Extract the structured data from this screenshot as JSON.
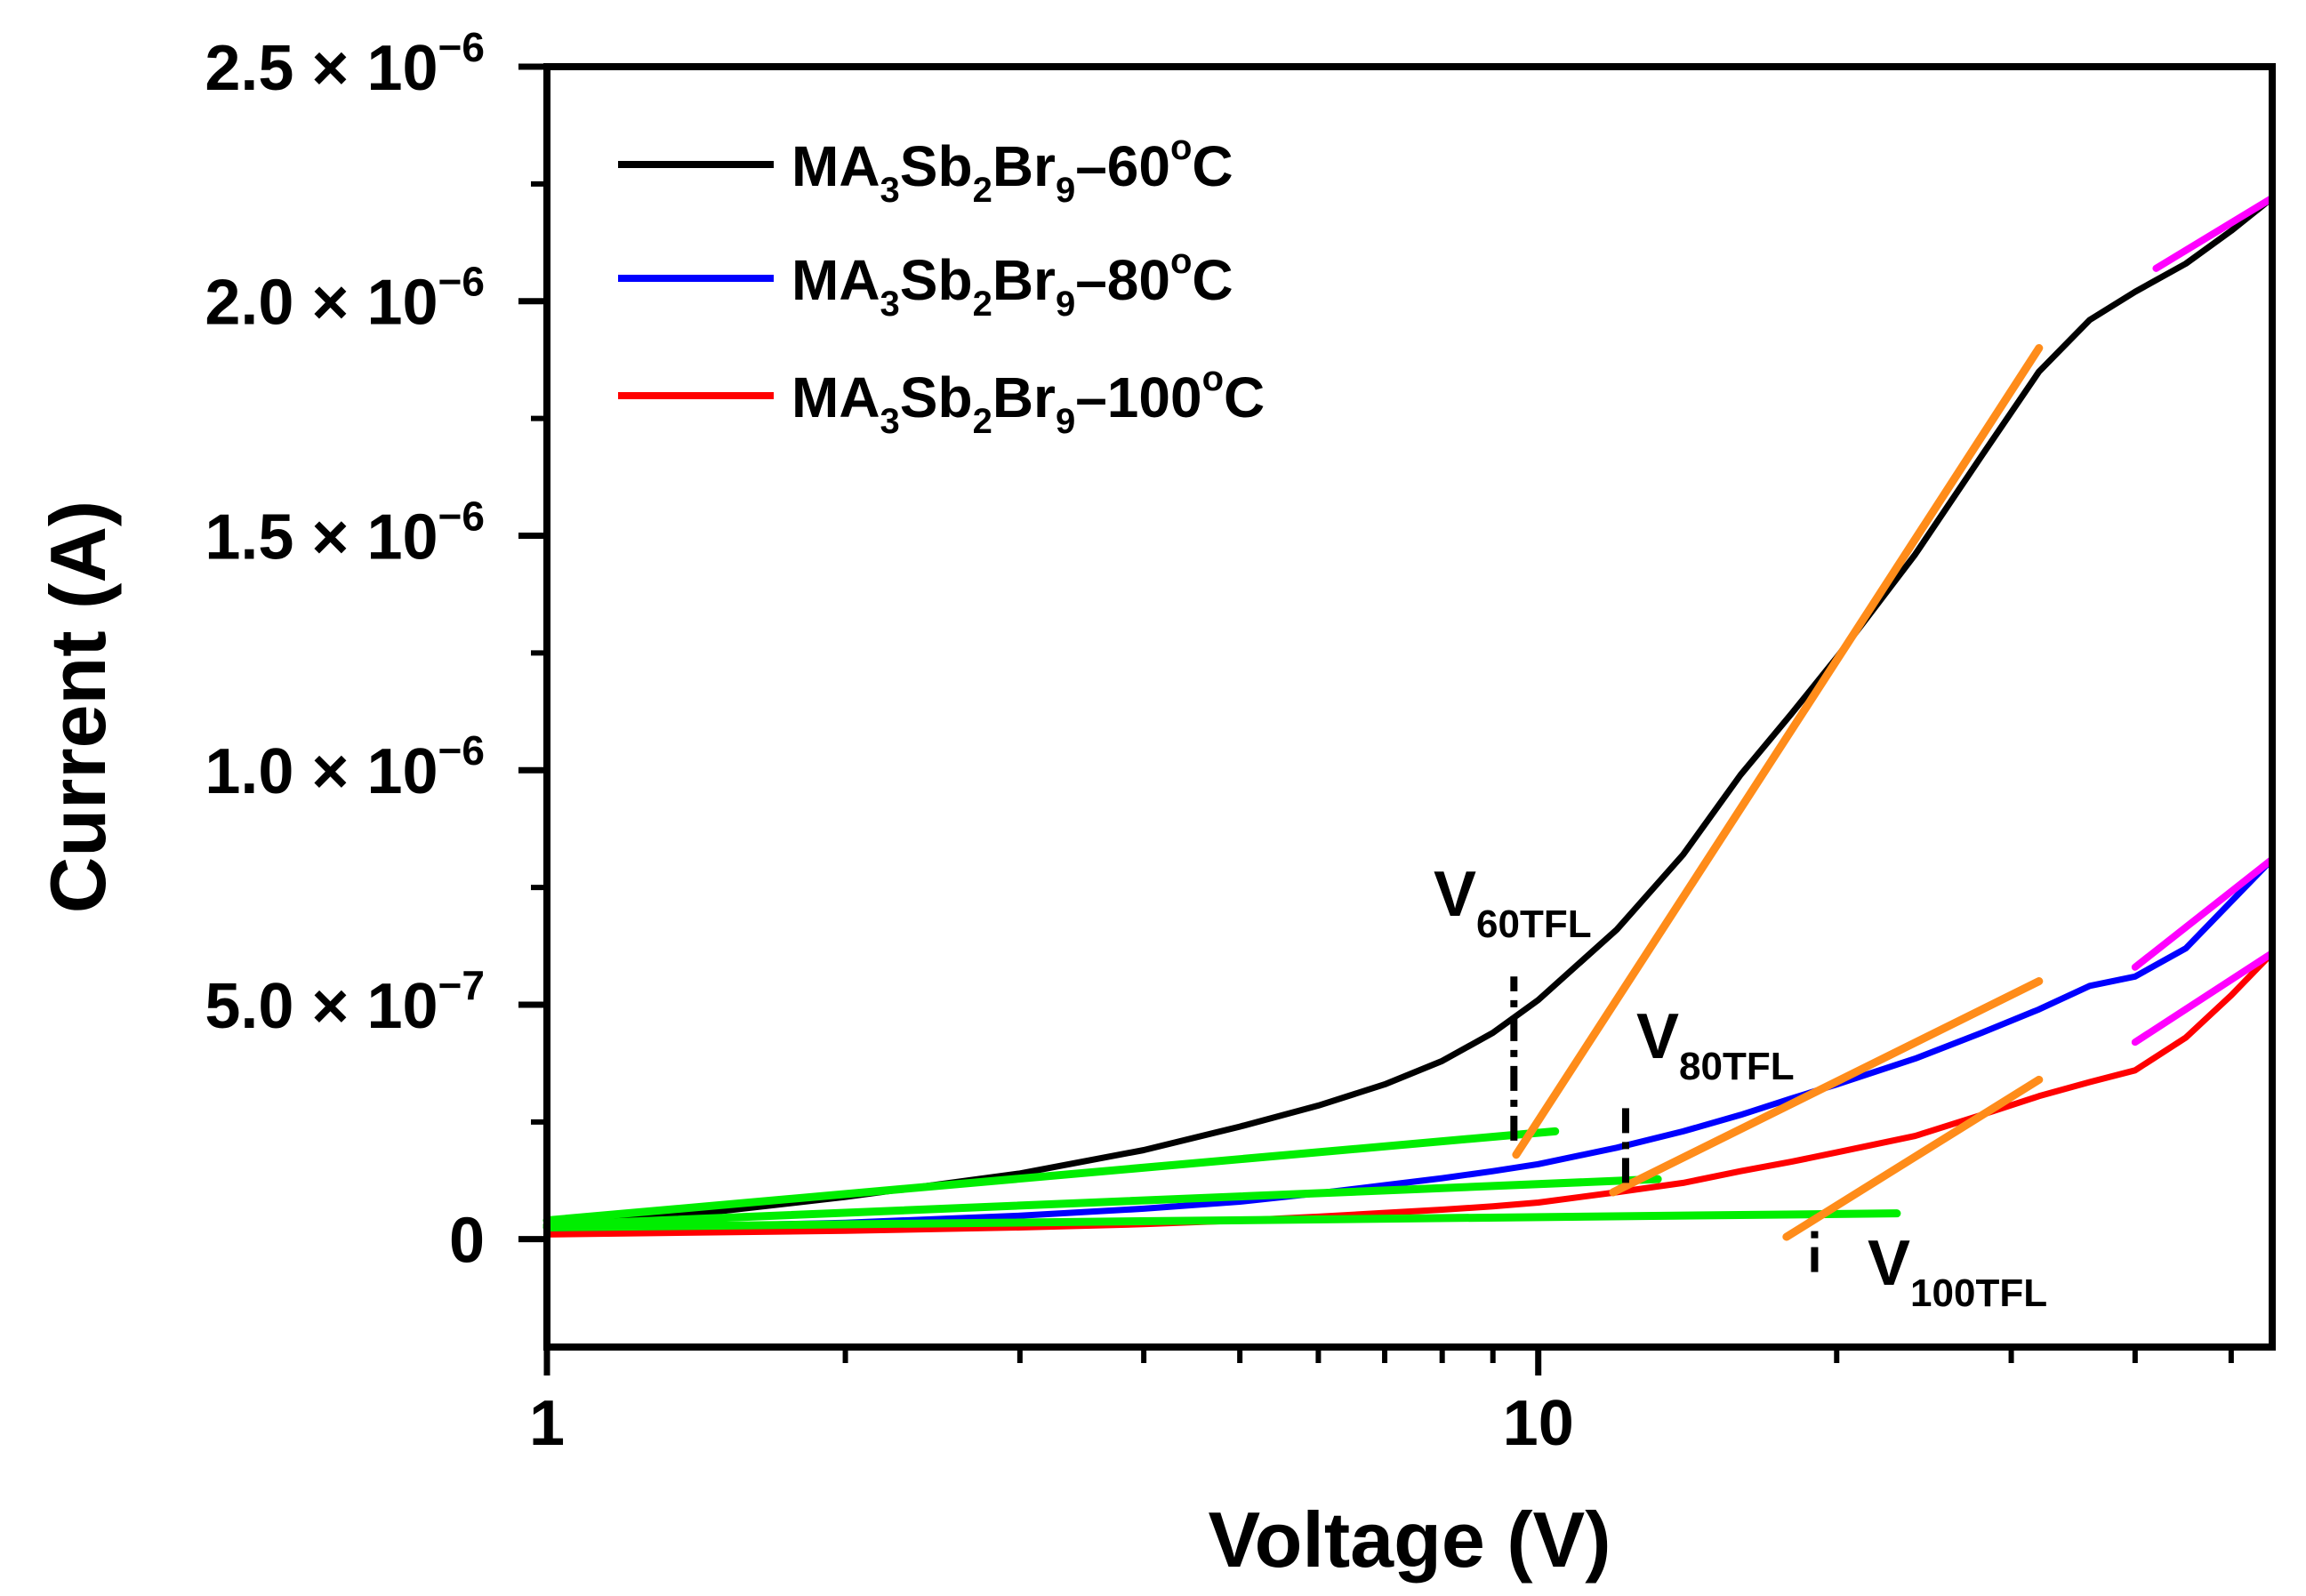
{
  "chart_data": {
    "type": "line",
    "xscale": "log",
    "xlabel": "Voltage (V)",
    "ylabel": "Current (A)",
    "xlim": [
      1,
      55
    ],
    "ylim": [
      -2.3e-07,
      2.5e-06
    ],
    "x_tick_labels": [
      {
        "value": 1,
        "text": "1"
      },
      {
        "value": 10,
        "text": "10"
      }
    ],
    "y_tick_labels": [
      {
        "value": 0,
        "mantissa": "0",
        "exp": ""
      },
      {
        "value": 5e-07,
        "mantissa": "5.0",
        "exp": "−7"
      },
      {
        "value": 1e-06,
        "mantissa": "1.0",
        "exp": "−6"
      },
      {
        "value": 1.5e-06,
        "mantissa": "1.5",
        "exp": "−6"
      },
      {
        "value": 2e-06,
        "mantissa": "2.0",
        "exp": "−6"
      },
      {
        "value": 2.5e-06,
        "mantissa": "2.5",
        "exp": "−6"
      }
    ],
    "series": [
      {
        "name": "MA3Sb2Br9–60oC",
        "label": {
          "base": "MA",
          "s1": "3",
          "m1": "Sb",
          "s2": "2",
          "m2": "Br",
          "s3": "9",
          "tail": "–60",
          "deg": "o",
          "unit": "C"
        },
        "color": "#000000",
        "x": [
          1,
          1.5,
          2,
          3,
          4,
          5,
          6,
          7,
          8,
          9,
          10,
          12,
          14,
          16,
          18,
          20,
          24,
          28,
          32,
          36,
          40,
          45,
          50,
          55
        ],
        "y": [
          3e-08,
          6e-08,
          9e-08,
          1.4e-07,
          1.9e-07,
          2.4e-07,
          2.85e-07,
          3.3e-07,
          3.8e-07,
          4.4e-07,
          5.1e-07,
          6.6e-07,
          8.2e-07,
          9.9e-07,
          1.12e-06,
          1.24e-06,
          1.46e-06,
          1.67e-06,
          1.85e-06,
          1.96e-06,
          2.02e-06,
          2.08e-06,
          2.15e-06,
          2.22e-06
        ]
      },
      {
        "name": "MA3Sb2Br9–80oC",
        "label": {
          "base": "MA",
          "s1": "3",
          "m1": "Sb",
          "s2": "2",
          "m2": "Br",
          "s3": "9",
          "tail": "–80",
          "deg": "o",
          "unit": "C"
        },
        "color": "#0000ff",
        "x": [
          1,
          2,
          3,
          4,
          5,
          6,
          7,
          8,
          9,
          10,
          12,
          14,
          16,
          18,
          20,
          24,
          28,
          32,
          36,
          40,
          45,
          50,
          55
        ],
        "y": [
          2e-08,
          3.5e-08,
          5e-08,
          6.5e-08,
          8e-08,
          9.8e-08,
          1.15e-07,
          1.3e-07,
          1.45e-07,
          1.6e-07,
          1.95e-07,
          2.3e-07,
          2.65e-07,
          3e-07,
          3.3e-07,
          3.85e-07,
          4.4e-07,
          4.9e-07,
          5.4e-07,
          5.6e-07,
          6.2e-07,
          7.2e-07,
          8.1e-07
        ]
      },
      {
        "name": "MA3Sb2Br9–100oC",
        "label": {
          "base": "MA",
          "s1": "3",
          "m1": "Sb",
          "s2": "2",
          "m2": "Br",
          "s3": "9",
          "tail": "–100",
          "deg": "o",
          "unit": "C"
        },
        "color": "#ff0000",
        "x": [
          1,
          2,
          3,
          4,
          5,
          6,
          7,
          8,
          9,
          10,
          12,
          14,
          16,
          18,
          20,
          24,
          28,
          32,
          36,
          40,
          45,
          50,
          55
        ],
        "y": [
          1e-08,
          1.8e-08,
          2.5e-08,
          3.2e-08,
          4e-08,
          4.8e-08,
          5.6e-08,
          6.3e-08,
          7e-08,
          7.8e-08,
          1e-07,
          1.2e-07,
          1.45e-07,
          1.65e-07,
          1.85e-07,
          2.2e-07,
          2.65e-07,
          3.05e-07,
          3.35e-07,
          3.6e-07,
          4.3e-07,
          5.2e-07,
          6.1e-07
        ]
      }
    ],
    "ohmic_fits": [
      {
        "color": "#00ee00",
        "x": [
          1,
          10.4
        ],
        "y": [
          4e-08,
          2.3e-07
        ]
      },
      {
        "color": "#00ee00",
        "x": [
          1,
          13.2
        ],
        "y": [
          3e-08,
          1.28e-07
        ]
      },
      {
        "color": "#00ee00",
        "x": [
          1,
          23
        ],
        "y": [
          2.5e-08,
          5.5e-08
        ]
      }
    ],
    "tfl_fits": [
      {
        "color": "#ff8c1a",
        "x": [
          9.5,
          32
        ],
        "y": [
          1.8e-07,
          1.9e-06
        ]
      },
      {
        "color": "#ff8c1a",
        "x": [
          11.9,
          32
        ],
        "y": [
          1e-07,
          5.5e-07
        ]
      },
      {
        "color": "#ff8c1a",
        "x": [
          17.8,
          32
        ],
        "y": [
          5e-09,
          3.4e-07
        ]
      }
    ],
    "high_field": [
      {
        "color": "#ff00ff",
        "x": [
          42,
          55
        ],
        "y": [
          2.07e-06,
          2.22e-06
        ]
      },
      {
        "color": "#ff00ff",
        "x": [
          40,
          55
        ],
        "y": [
          5.8e-07,
          8.1e-07
        ]
      },
      {
        "color": "#ff00ff",
        "x": [
          40,
          55
        ],
        "y": [
          4.2e-07,
          6.1e-07
        ]
      }
    ],
    "annotations": [
      {
        "main": "V",
        "sub": "60TFL",
        "x": 9.45,
        "line_y": [
          2.1e-07,
          5.6e-07
        ]
      },
      {
        "main": "V",
        "sub": "80TFL",
        "x": 12.25,
        "line_y": [
          1.2e-07,
          2.9e-07
        ]
      },
      {
        "main": "V",
        "sub": "100TFL",
        "x": 19.0,
        "line_y": [
          -7e-08,
          3e-08
        ]
      }
    ]
  }
}
